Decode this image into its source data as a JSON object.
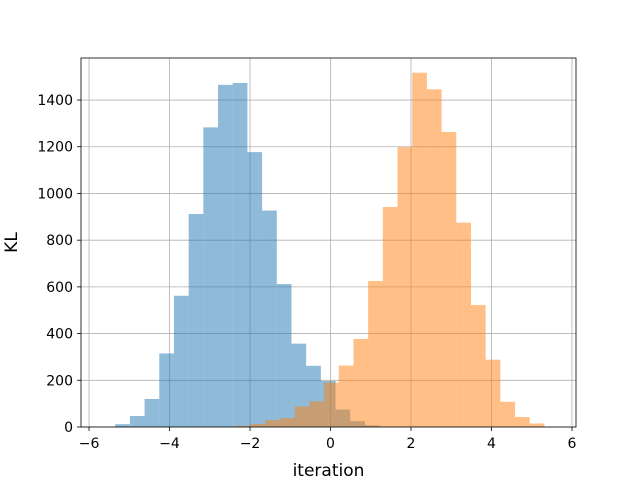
{
  "chart_data": {
    "type": "bar",
    "subtype": "histogram",
    "xlabel": "iteration",
    "ylabel": "KL",
    "xlim": [
      -6.2,
      6.1
    ],
    "ylim": [
      0,
      1580
    ],
    "xticks": [
      -6,
      -4,
      -2,
      0,
      2,
      4,
      6
    ],
    "yticks": [
      0,
      200,
      400,
      600,
      800,
      1000,
      1200,
      1400
    ],
    "grid": true,
    "legend": "none",
    "bin_width": 0.365,
    "series": [
      {
        "color": "#1f77b4",
        "opacity": 0.5,
        "bins_start": [
          -5.35,
          -4.985,
          -4.62,
          -4.255,
          -3.89,
          -3.525,
          -3.16,
          -2.795,
          -2.43,
          -2.065,
          -1.7,
          -1.335,
          -0.97,
          -0.605,
          -0.24,
          0.125,
          0.49,
          0.855
        ],
        "counts": [
          12,
          47,
          120,
          315,
          562,
          912,
          1283,
          1465,
          1473,
          1177,
          927,
          612,
          357,
          262,
          197,
          75,
          25,
          7
        ]
      },
      {
        "color": "#ff7f0e",
        "opacity": 0.5,
        "bins_start": [
          -2.35,
          -1.985,
          -1.62,
          -1.255,
          -0.89,
          -0.525,
          -0.16,
          0.205,
          0.57,
          0.935,
          1.3,
          1.665,
          2.03,
          2.395,
          2.76,
          3.125,
          3.49,
          3.855,
          4.22,
          4.585,
          4.95
        ],
        "counts": [
          5,
          13,
          30,
          38,
          88,
          110,
          190,
          263,
          377,
          625,
          942,
          1198,
          1517,
          1446,
          1263,
          875,
          522,
          288,
          108,
          43,
          15
        ]
      }
    ]
  }
}
